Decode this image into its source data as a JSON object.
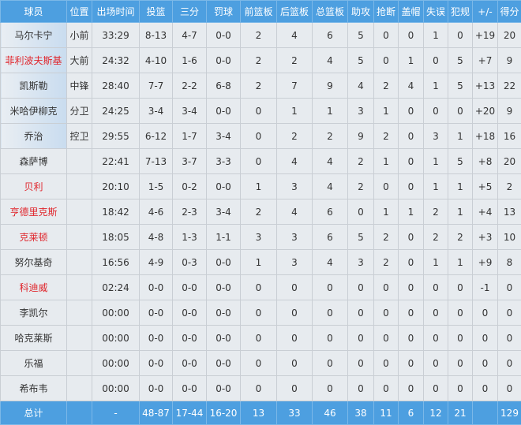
{
  "headers": [
    "球员",
    "位置",
    "出场时间",
    "投篮",
    "三分",
    "罚球",
    "前篮板",
    "后篮板",
    "总篮板",
    "助攻",
    "抢断",
    "盖帽",
    "失误",
    "犯规",
    "+/-",
    "得分"
  ],
  "colors": {
    "header_bg": "#4d9fe0",
    "highlight_name": "#e0262c",
    "row_bg": "#e7ebef"
  },
  "players": [
    {
      "name": "马尔卡宁",
      "pos": "小前",
      "min": "33:29",
      "fg": "8-13",
      "tp": "4-7",
      "ft": "0-0",
      "oreb": "2",
      "dreb": "4",
      "reb": "6",
      "ast": "5",
      "stl": "0",
      "blk": "0",
      "tov": "1",
      "pf": "0",
      "pm": "+19",
      "pts": "20",
      "red": false,
      "starter": true
    },
    {
      "name": "菲利波夫斯基",
      "pos": "大前",
      "min": "24:32",
      "fg": "4-10",
      "tp": "1-6",
      "ft": "0-0",
      "oreb": "2",
      "dreb": "2",
      "reb": "4",
      "ast": "5",
      "stl": "0",
      "blk": "1",
      "tov": "0",
      "pf": "5",
      "pm": "+7",
      "pts": "9",
      "red": true,
      "starter": true
    },
    {
      "name": "凯斯勒",
      "pos": "中锋",
      "min": "28:40",
      "fg": "7-7",
      "tp": "2-2",
      "ft": "6-8",
      "oreb": "2",
      "dreb": "7",
      "reb": "9",
      "ast": "4",
      "stl": "2",
      "blk": "4",
      "tov": "1",
      "pf": "5",
      "pm": "+13",
      "pts": "22",
      "red": false,
      "starter": true
    },
    {
      "name": "米哈伊柳克",
      "pos": "分卫",
      "min": "24:25",
      "fg": "3-4",
      "tp": "3-4",
      "ft": "0-0",
      "oreb": "0",
      "dreb": "1",
      "reb": "1",
      "ast": "3",
      "stl": "1",
      "blk": "0",
      "tov": "0",
      "pf": "0",
      "pm": "+20",
      "pts": "9",
      "red": false,
      "starter": true
    },
    {
      "name": "乔治",
      "pos": "控卫",
      "min": "29:55",
      "fg": "6-12",
      "tp": "1-7",
      "ft": "3-4",
      "oreb": "0",
      "dreb": "2",
      "reb": "2",
      "ast": "9",
      "stl": "2",
      "blk": "0",
      "tov": "3",
      "pf": "1",
      "pm": "+18",
      "pts": "16",
      "red": false,
      "starter": true
    },
    {
      "name": "森萨博",
      "pos": "",
      "min": "22:41",
      "fg": "7-13",
      "tp": "3-7",
      "ft": "3-3",
      "oreb": "0",
      "dreb": "4",
      "reb": "4",
      "ast": "2",
      "stl": "1",
      "blk": "0",
      "tov": "1",
      "pf": "5",
      "pm": "+8",
      "pts": "20",
      "red": false,
      "starter": false
    },
    {
      "name": "贝利",
      "pos": "",
      "min": "20:10",
      "fg": "1-5",
      "tp": "0-2",
      "ft": "0-0",
      "oreb": "1",
      "dreb": "3",
      "reb": "4",
      "ast": "2",
      "stl": "0",
      "blk": "0",
      "tov": "1",
      "pf": "1",
      "pm": "+5",
      "pts": "2",
      "red": true,
      "starter": false
    },
    {
      "name": "亨德里克斯",
      "pos": "",
      "min": "18:42",
      "fg": "4-6",
      "tp": "2-3",
      "ft": "3-4",
      "oreb": "2",
      "dreb": "4",
      "reb": "6",
      "ast": "0",
      "stl": "1",
      "blk": "1",
      "tov": "2",
      "pf": "1",
      "pm": "+4",
      "pts": "13",
      "red": true,
      "starter": false
    },
    {
      "name": "克莱顿",
      "pos": "",
      "min": "18:05",
      "fg": "4-8",
      "tp": "1-3",
      "ft": "1-1",
      "oreb": "3",
      "dreb": "3",
      "reb": "6",
      "ast": "5",
      "stl": "2",
      "blk": "0",
      "tov": "2",
      "pf": "2",
      "pm": "+3",
      "pts": "10",
      "red": true,
      "starter": false
    },
    {
      "name": "努尔基奇",
      "pos": "",
      "min": "16:56",
      "fg": "4-9",
      "tp": "0-3",
      "ft": "0-0",
      "oreb": "1",
      "dreb": "3",
      "reb": "4",
      "ast": "3",
      "stl": "2",
      "blk": "0",
      "tov": "1",
      "pf": "1",
      "pm": "+9",
      "pts": "8",
      "red": false,
      "starter": false
    },
    {
      "name": "科迪威",
      "pos": "",
      "min": "02:24",
      "fg": "0-0",
      "tp": "0-0",
      "ft": "0-0",
      "oreb": "0",
      "dreb": "0",
      "reb": "0",
      "ast": "0",
      "stl": "0",
      "blk": "0",
      "tov": "0",
      "pf": "0",
      "pm": "-1",
      "pts": "0",
      "red": true,
      "starter": false
    },
    {
      "name": "李凯尔",
      "pos": "",
      "min": "00:00",
      "fg": "0-0",
      "tp": "0-0",
      "ft": "0-0",
      "oreb": "0",
      "dreb": "0",
      "reb": "0",
      "ast": "0",
      "stl": "0",
      "blk": "0",
      "tov": "0",
      "pf": "0",
      "pm": "0",
      "pts": "0",
      "red": false,
      "starter": false
    },
    {
      "name": "哈克莱斯",
      "pos": "",
      "min": "00:00",
      "fg": "0-0",
      "tp": "0-0",
      "ft": "0-0",
      "oreb": "0",
      "dreb": "0",
      "reb": "0",
      "ast": "0",
      "stl": "0",
      "blk": "0",
      "tov": "0",
      "pf": "0",
      "pm": "0",
      "pts": "0",
      "red": false,
      "starter": false
    },
    {
      "name": "乐福",
      "pos": "",
      "min": "00:00",
      "fg": "0-0",
      "tp": "0-0",
      "ft": "0-0",
      "oreb": "0",
      "dreb": "0",
      "reb": "0",
      "ast": "0",
      "stl": "0",
      "blk": "0",
      "tov": "0",
      "pf": "0",
      "pm": "0",
      "pts": "0",
      "red": false,
      "starter": false
    },
    {
      "name": "希布韦",
      "pos": "",
      "min": "00:00",
      "fg": "0-0",
      "tp": "0-0",
      "ft": "0-0",
      "oreb": "0",
      "dreb": "0",
      "reb": "0",
      "ast": "0",
      "stl": "0",
      "blk": "0",
      "tov": "0",
      "pf": "0",
      "pm": "0",
      "pts": "0",
      "red": false,
      "starter": false
    }
  ],
  "totals": {
    "name": "总计",
    "pos": "",
    "min": "-",
    "fg": "48-87",
    "tp": "17-44",
    "ft": "16-20",
    "oreb": "13",
    "dreb": "33",
    "reb": "46",
    "ast": "38",
    "stl": "11",
    "blk": "6",
    "tov": "12",
    "pf": "21",
    "pm": "",
    "pts": "129"
  }
}
